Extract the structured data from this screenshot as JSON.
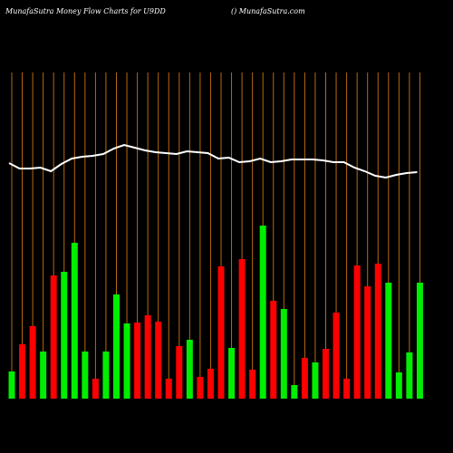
{
  "chart_data": {
    "type": "bar",
    "title": "MunafaSutra  Money Flow  Charts for U9DD",
    "subtitle": "() MunafaSutra.com",
    "categories": [
      null,
      null,
      null,
      null,
      null,
      null,
      null,
      null,
      null,
      null,
      null,
      null,
      null,
      null,
      null,
      null,
      null,
      null,
      null,
      null,
      null,
      null,
      null,
      null,
      null,
      null,
      null,
      null,
      null,
      null,
      null,
      null,
      null,
      null,
      null,
      null,
      null,
      null,
      null,
      null
    ],
    "values": [
      30,
      60,
      80,
      52,
      136,
      140,
      172,
      52,
      22,
      52,
      115,
      83,
      84,
      92,
      85,
      22,
      58,
      65,
      24,
      33,
      146,
      56,
      154,
      32,
      191,
      108,
      99,
      15,
      45,
      40,
      55,
      95,
      22,
      147,
      124,
      149,
      128,
      29,
      51,
      128
    ],
    "colors": [
      "#00ee00",
      "#ff0000",
      "#ff0000",
      "#00ee00",
      "#ff0000",
      "#00ee00",
      "#00ee00",
      "#00ee00",
      "#ff0000",
      "#00ee00",
      "#00ee00",
      "#00ee00",
      "#ff0000",
      "#ff0000",
      "#ff0000",
      "#ff0000",
      "#ff0000",
      "#00ee00",
      "#ff0000",
      "#ff0000",
      "#ff0000",
      "#00ee00",
      "#ff0000",
      "#ff0000",
      "#00ee00",
      "#ff0000",
      "#00ee00",
      "#00ee00",
      "#ff0000",
      "#00ee00",
      "#ff0000",
      "#ff0000",
      "#ff0000",
      "#ff0000",
      "#ff0000",
      "#ff0000",
      "#00ee00",
      "#00ee00",
      "#00ee00",
      "#00ee00"
    ],
    "line": {
      "color": "#ffffff",
      "values": [
        260,
        254,
        254,
        255,
        251,
        259,
        265,
        267,
        268,
        270,
        276,
        280,
        277,
        274,
        272,
        271,
        270,
        273,
        272,
        271,
        265,
        266,
        261,
        262,
        265,
        261,
        262,
        264,
        264,
        264,
        263,
        261,
        261,
        255,
        251,
        246,
        244,
        247,
        249,
        250
      ]
    },
    "ylim": [
      0,
      360
    ]
  }
}
